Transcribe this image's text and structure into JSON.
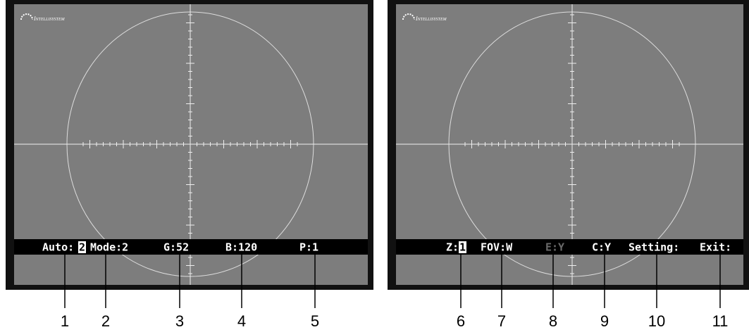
{
  "screens": [
    {
      "logo": "Intellisystem",
      "menu": [
        {
          "text": "Auto:"
        },
        {
          "text": "2",
          "highlight": true
        },
        {
          "text": "Mode:2"
        },
        {
          "text": "G:52"
        },
        {
          "text": "B:120"
        },
        {
          "text": "P:1"
        }
      ]
    },
    {
      "logo": "Intellisystem",
      "menu": [
        {
          "text": "Z:"
        },
        {
          "text": "1",
          "highlight": true
        },
        {
          "text": "FOV:W"
        },
        {
          "text": "E:Y",
          "dimmed": true
        },
        {
          "text": "C:Y"
        },
        {
          "text": "Setting:"
        },
        {
          "text": "Exit:"
        }
      ]
    }
  ],
  "callouts": [
    "1",
    "2",
    "3",
    "4",
    "5",
    "6",
    "7",
    "8",
    "9",
    "10",
    "11"
  ]
}
